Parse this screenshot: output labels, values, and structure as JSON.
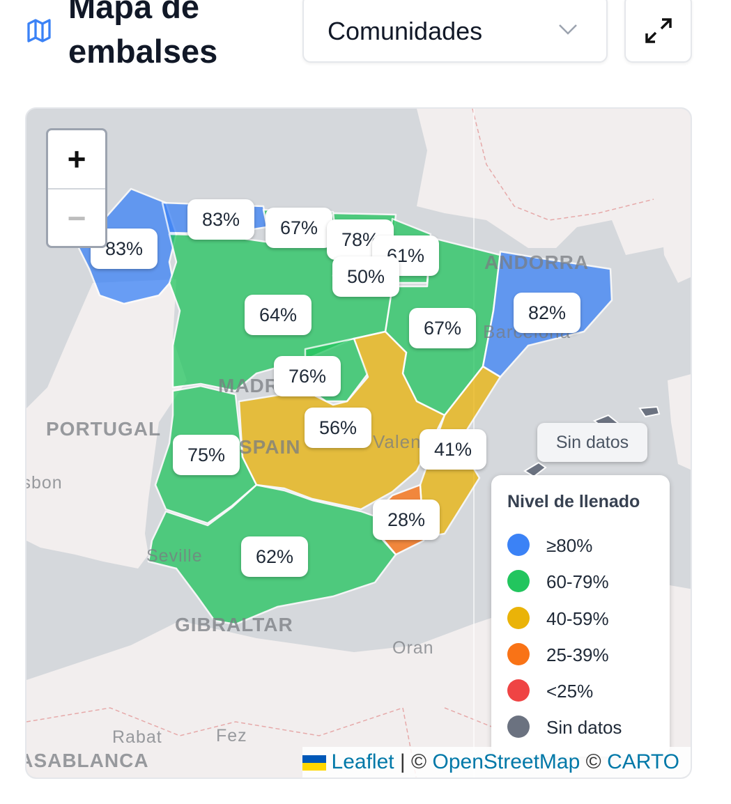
{
  "header": {
    "title": "Mapa de embalses",
    "icon": "map-icon",
    "select_value": "Comunidades",
    "expand_icon": "expand-icon"
  },
  "map": {
    "zoom_in": "+",
    "zoom_out": "−",
    "regions": [
      {
        "name": "galicia",
        "label": "83%",
        "value": 83,
        "color": "#3b82f6"
      },
      {
        "name": "asturias",
        "label": "83%",
        "value": 83,
        "color": "#3b82f6"
      },
      {
        "name": "cantabria",
        "label": "67%",
        "value": 67,
        "color": "#22c55e"
      },
      {
        "name": "pais-vasco",
        "label": "78%",
        "value": 78,
        "color": "#22c55e"
      },
      {
        "name": "navarra",
        "label": "61%",
        "value": 61,
        "color": "#22c55e"
      },
      {
        "name": "la-rioja",
        "label": "50%",
        "value": 50,
        "color": "#eab308"
      },
      {
        "name": "castilla-y-leon",
        "label": "64%",
        "value": 64,
        "color": "#22c55e"
      },
      {
        "name": "aragon",
        "label": "67%",
        "value": 67,
        "color": "#22c55e"
      },
      {
        "name": "cataluna",
        "label": "82%",
        "value": 82,
        "color": "#3b82f6"
      },
      {
        "name": "madrid",
        "label": "76%",
        "value": 76,
        "color": "#22c55e"
      },
      {
        "name": "castilla-la-mancha",
        "label": "56%",
        "value": 56,
        "color": "#eab308"
      },
      {
        "name": "comunidad-valenciana",
        "label": "41%",
        "value": 41,
        "color": "#eab308"
      },
      {
        "name": "extremadura",
        "label": "75%",
        "value": 75,
        "color": "#22c55e"
      },
      {
        "name": "murcia",
        "label": "28%",
        "value": 28,
        "color": "#f97316"
      },
      {
        "name": "andalucia",
        "label": "62%",
        "value": 62,
        "color": "#22c55e"
      }
    ],
    "places": [
      "ANDORRA",
      "PORTUGAL",
      "MADRID",
      "SPAIN",
      "Valencia",
      "Barcelona",
      "Lisbon",
      "Seville",
      "GIBRALTAR",
      "Oran",
      "Rabat",
      "Fez",
      "CASABLANCA"
    ],
    "sin_datos_label": "Sin datos"
  },
  "legend": {
    "title": "Nivel de llenado",
    "items": [
      {
        "label": "≥80%",
        "color": "#3b82f6"
      },
      {
        "label": "60-79%",
        "color": "#22c55e"
      },
      {
        "label": "40-59%",
        "color": "#eab308"
      },
      {
        "label": "25-39%",
        "color": "#f97316"
      },
      {
        "label": "<25%",
        "color": "#ef4444"
      },
      {
        "label": "Sin datos",
        "color": "#6b7280"
      }
    ]
  },
  "attribution": {
    "leaflet": "Leaflet",
    "sep": " | © ",
    "osm": "OpenStreetMap",
    "sep2": " © ",
    "carto": "CARTO"
  }
}
